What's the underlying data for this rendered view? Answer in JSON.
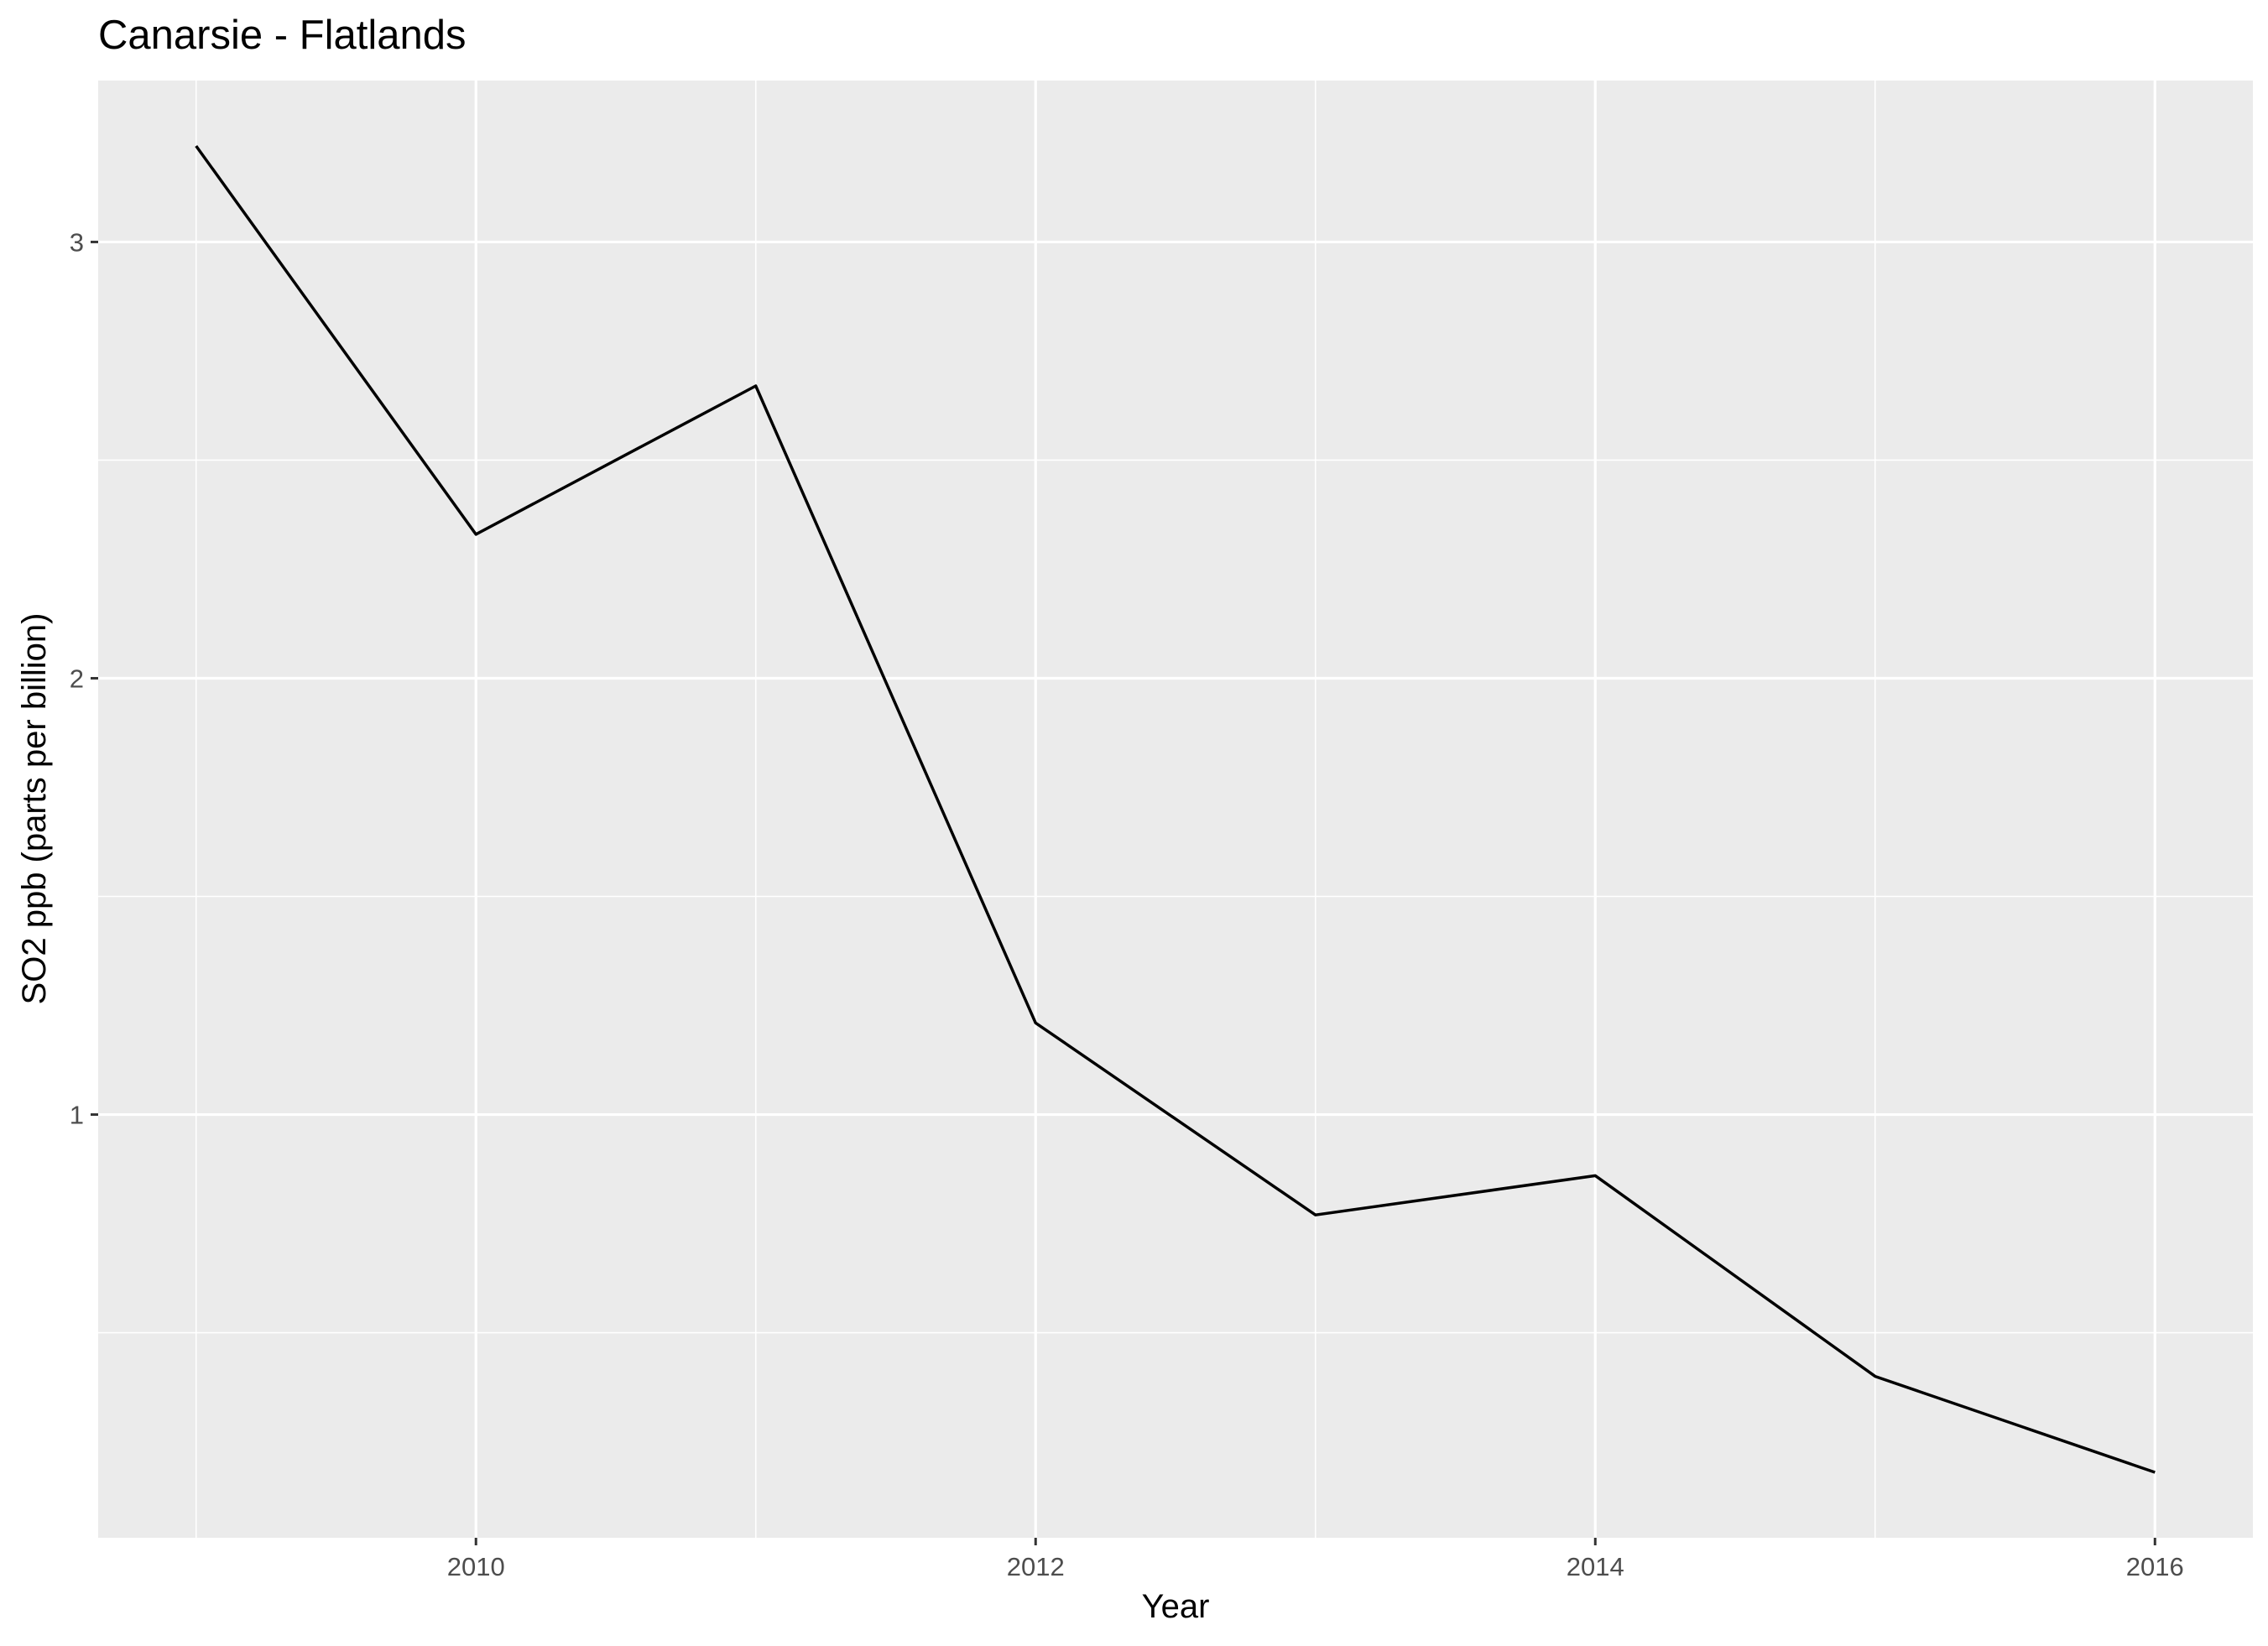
{
  "chart_data": {
    "type": "line",
    "title": "Canarsie - Flatlands",
    "xlabel": "Year",
    "ylabel": "SO2 ppb (parts per billion)",
    "x_ticks": [
      "2010",
      "2012",
      "2014",
      "2016"
    ],
    "y_ticks": [
      "1",
      "2",
      "3"
    ],
    "x": [
      2009,
      2010,
      2011,
      2012,
      2013,
      2014,
      2015,
      2016
    ],
    "y": [
      3.22,
      2.33,
      2.67,
      1.21,
      0.77,
      0.86,
      0.4,
      0.18
    ],
    "xlim": [
      2008.65,
      2016.35
    ],
    "ylim": [
      0.03,
      3.37
    ],
    "grid": true,
    "colors": {
      "panel": "#ebebeb",
      "grid": "#ffffff",
      "line": "#000000",
      "tick": "#333333"
    }
  }
}
